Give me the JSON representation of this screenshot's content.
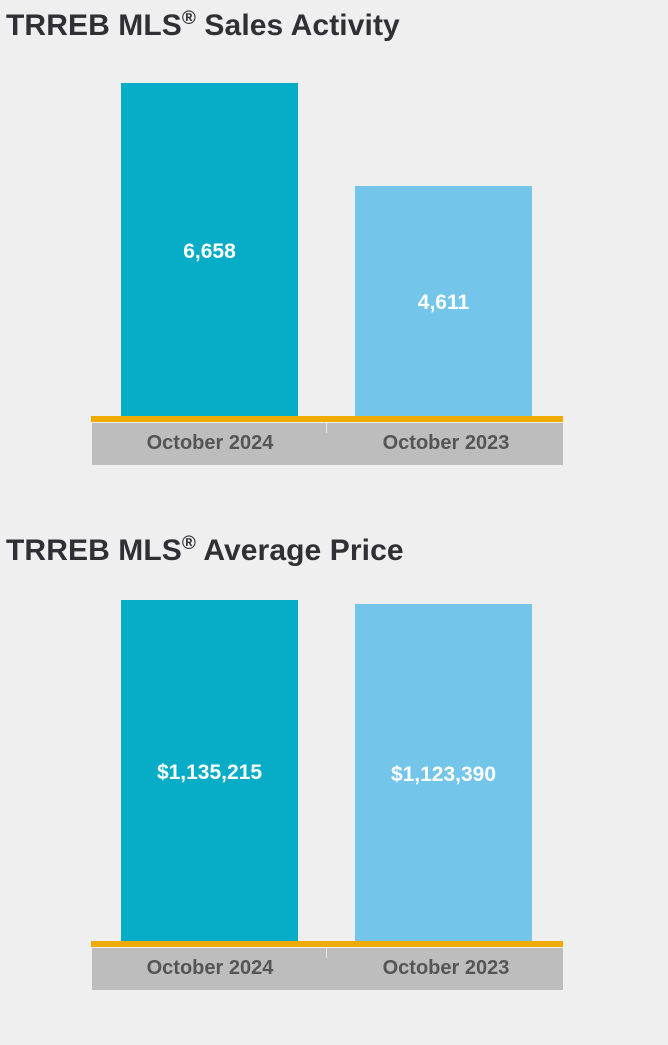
{
  "colors": {
    "background": "#efefef",
    "current_bar": "#07acc6",
    "prior_bar": "#73c5ea",
    "baseline": "#f0ab00",
    "axis_band": "#bdbdbd",
    "tick_text": "#555555",
    "title_text": "#2f2f35"
  },
  "chart_data": [
    {
      "type": "bar",
      "title_main": "TRREB MLS",
      "title_reg": "®",
      "title_rest": " Sales Activity",
      "categories": [
        "October 2024",
        "October 2023"
      ],
      "values": [
        6658,
        4611
      ],
      "value_labels": [
        "6,658",
        "4,611"
      ],
      "ylim": [
        0,
        6950
      ],
      "xlabel": "",
      "ylabel": "",
      "grid": false,
      "legend": "none"
    },
    {
      "type": "bar",
      "title_main": "TRREB MLS",
      "title_reg": "®",
      "title_rest": " Average Price",
      "categories": [
        "October 2024",
        "October 2023"
      ],
      "values": [
        1135215,
        1123390
      ],
      "value_labels": [
        "$1,135,215",
        "$1,123,390"
      ],
      "ylim": [
        0,
        1159000
      ],
      "xlabel": "",
      "ylabel": "",
      "grid": false,
      "legend": "none"
    }
  ]
}
